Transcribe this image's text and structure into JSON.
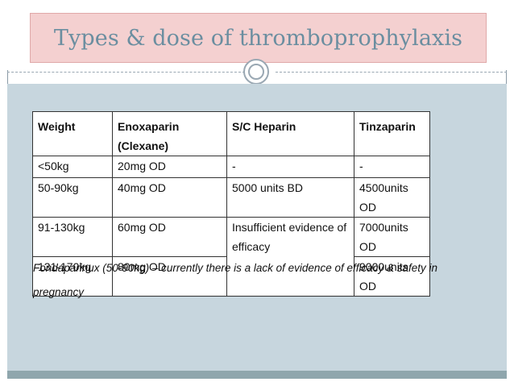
{
  "slide": {
    "title": "Types & dose of thromboprophylaxis",
    "colors": {
      "title_box": "#f4d0d0",
      "title_text": "#6b8ea0",
      "content_bg": "#c7d6de",
      "footer": "#8fa6ad"
    }
  },
  "table": {
    "headers": [
      "Weight",
      "Enoxaparin (Clexane)",
      "S/C Heparin",
      "Tinzaparin"
    ],
    "rows": [
      [
        "<50kg",
        "20mg OD",
        "-",
        "-"
      ],
      [
        "50-90kg",
        "40mg OD",
        "5000 units BD",
        "4500units OD"
      ],
      [
        "91-130kg",
        "60mg OD",
        "Insufficient evidence of efficacy",
        "7000units OD"
      ],
      [
        "131-170kg",
        "80mg OD",
        "",
        "9000units OD"
      ]
    ]
  },
  "note": "Fondaparinux (50-90kg) – currently there is a lack of evidence of efficacy & safety in pregnancy"
}
